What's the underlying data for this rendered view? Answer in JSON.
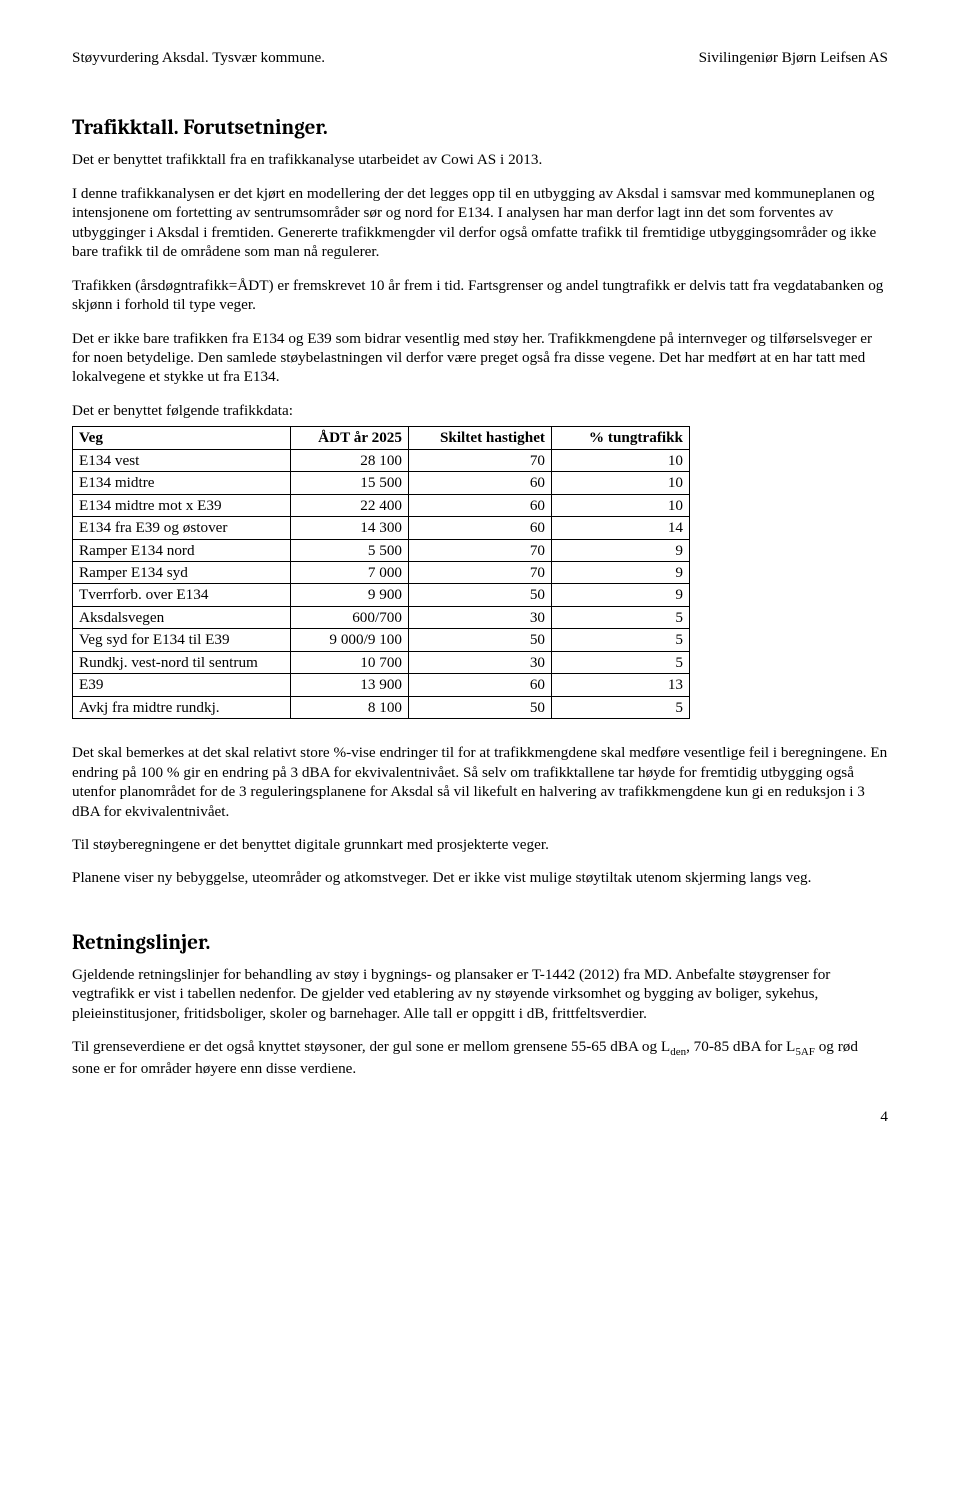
{
  "header": {
    "left": "Støyvurdering Aksdal. Tysvær kommune.",
    "right": "Sivilingeniør Bjørn Leifsen AS"
  },
  "sections": {
    "trafikktall": {
      "title": "Trafikktall. Forutsetninger.",
      "p1": "Det er benyttet trafikktall fra en trafikkanalyse utarbeidet av Cowi AS i 2013.",
      "p2": "I denne trafikkanalysen er det kjørt en modellering der det legges opp til en utbygging av Aksdal i samsvar med kommuneplanen og intensjonene om fortetting av sentrumsområder sør og nord for E134. I analysen har man derfor lagt inn det som forventes av utbygginger i Aksdal i fremtiden. Genererte trafikkmengder vil derfor også omfatte trafikk til fremtidige utbyggingsområder og ikke bare trafikk til de områdene som man nå regulerer.",
      "p3": "Trafikken (årsdøgntrafikk=ÅDT) er fremskrevet 10 år frem i tid. Fartsgrenser og andel tungtrafikk er delvis tatt fra vegdatabanken og skjønn i forhold til type veger.",
      "p4": "Det er ikke bare trafikken fra E134 og E39 som bidrar vesentlig med støy her. Trafikkmengdene på internveger og tilførselsveger er for noen betydelige. Den samlede støybelastningen vil derfor være preget også fra disse vegene. Det har medført at en har tatt med lokalvegene et stykke ut fra E134.",
      "p5": "Det er benyttet følgende trafikkdata:"
    },
    "table": {
      "headers": [
        "Veg",
        "ÅDT år 2025",
        "Skiltet hastighet",
        "% tungtrafikk"
      ],
      "rows": [
        [
          "E134 vest",
          "28 100",
          "70",
          "10"
        ],
        [
          "E134 midtre",
          "15 500",
          "60",
          "10"
        ],
        [
          "E134 midtre mot x E39",
          "22 400",
          "60",
          "10"
        ],
        [
          "E134 fra E39 og østover",
          "14 300",
          "60",
          "14"
        ],
        [
          "Ramper E134 nord",
          "5 500",
          "70",
          "9"
        ],
        [
          "Ramper E134 syd",
          "7 000",
          "70",
          "9"
        ],
        [
          "Tverrforb. over E134",
          "9 900",
          "50",
          "9"
        ],
        [
          "Aksdalsvegen",
          "600/700",
          "30",
          "5"
        ],
        [
          "Veg syd for E134 til E39",
          "9 000/9 100",
          "50",
          "5"
        ],
        [
          "Rundkj. vest-nord til sentrum",
          "10 700",
          "30",
          "5"
        ],
        [
          "E39",
          "13 900",
          "60",
          "13"
        ],
        [
          "Avkj fra midtre rundkj.",
          "8 100",
          "50",
          "5"
        ]
      ]
    },
    "after_table": {
      "p1": "Det skal bemerkes at det skal relativt store %-vise endringer til for at trafikkmengdene skal medføre vesentlige feil i beregningene. En endring på 100 % gir en endring på 3 dBA for ekvivalentnivået. Så selv om trafikktallene tar høyde for fremtidig utbygging også utenfor planområdet for de 3 reguleringsplanene for Aksdal så vil likefult en halvering av trafikkmengdene kun gi en reduksjon i 3 dBA for ekvivalentnivået.",
      "p2": "Til støyberegningene er det benyttet digitale grunnkart med prosjekterte veger.",
      "p3": "Planene viser ny bebyggelse, uteområder og atkomstveger. Det er ikke vist mulige støytiltak utenom skjerming langs veg."
    },
    "retningslinjer": {
      "title": "Retningslinjer.",
      "p1": "Gjeldende retningslinjer for behandling av støy i bygnings- og plansaker er T-1442 (2012) fra MD. Anbefalte støygrenser for vegtrafikk er vist i tabellen nedenfor. De gjelder ved etablering av ny støyende virksomhet og bygging av boliger, sykehus, pleieinstitusjoner, fritidsboliger, skoler og barnehager. Alle tall er oppgitt i dB, frittfeltsverdier.",
      "p2a": "Til grenseverdiene er det også knyttet støysoner, der gul sone er mellom grensene 55-65 dBA og L",
      "p2b": ", 70-85 dBA for L",
      "p2c": " og rød sone er for områder høyere enn disse verdiene.",
      "sub1": "den",
      "sub2": "5AF"
    }
  },
  "page_number": "4"
}
